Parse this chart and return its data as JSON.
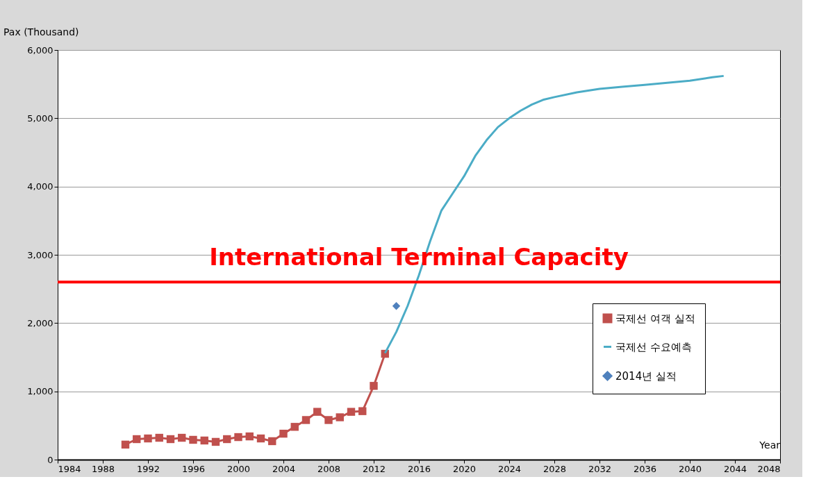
{
  "chart_data": {
    "type": "line",
    "ylabel": "Pax (Thousand)",
    "xlabel": "Year",
    "xlim": [
      1984,
      2048
    ],
    "xticks": [
      1984,
      1988,
      1992,
      1996,
      2000,
      2004,
      2008,
      2012,
      2016,
      2020,
      2024,
      2028,
      2032,
      2036,
      2040,
      2044,
      2048
    ],
    "ylim": [
      0,
      6000
    ],
    "yticks": [
      {
        "value": 0,
        "label": "0"
      },
      {
        "value": 1000,
        "label": "1,000"
      },
      {
        "value": 2000,
        "label": "2,000"
      },
      {
        "value": 3000,
        "label": "3,000"
      },
      {
        "value": 4000,
        "label": "4,000"
      },
      {
        "value": 5000,
        "label": "5,000"
      },
      {
        "value": 6000,
        "label": "6,000"
      }
    ],
    "grid": "y",
    "legend": "bottom right",
    "ref_lines": [
      {
        "axis": "y",
        "value": 2600,
        "label": "International Terminal Capacity",
        "color": "#ff0000"
      }
    ],
    "series": [
      {
        "name": "국제선 여객 실적",
        "color": "#c0504d",
        "marker": "square",
        "x": [
          1990,
          1991,
          1992,
          1993,
          1994,
          1995,
          1996,
          1997,
          1998,
          1999,
          2000,
          2001,
          2002,
          2003,
          2004,
          2005,
          2006,
          2007,
          2008,
          2009,
          2010,
          2011,
          2012,
          2013
        ],
        "values": [
          220,
          300,
          310,
          320,
          300,
          320,
          290,
          280,
          260,
          300,
          330,
          340,
          310,
          270,
          380,
          480,
          580,
          700,
          580,
          620,
          700,
          710,
          1080,
          1550
        ]
      },
      {
        "name": "국제선 수요예측",
        "color": "#4bacc6",
        "marker": "none",
        "x": [
          2013,
          2014,
          2015,
          2016,
          2017,
          2018,
          2019,
          2020,
          2021,
          2022,
          2023,
          2024,
          2025,
          2026,
          2027,
          2028,
          2030,
          2032,
          2034,
          2036,
          2038,
          2040,
          2042,
          2043
        ],
        "values": [
          1560,
          1870,
          2250,
          2700,
          3200,
          3650,
          3900,
          4150,
          4450,
          4680,
          4870,
          5000,
          5110,
          5200,
          5270,
          5310,
          5380,
          5430,
          5460,
          5490,
          5520,
          5550,
          5600,
          5620
        ]
      },
      {
        "name": "2014년 실적",
        "color": "#4f81bd",
        "type": "scatter",
        "marker": "diamond",
        "x": [
          2014
        ],
        "values": [
          2250
        ]
      }
    ]
  }
}
